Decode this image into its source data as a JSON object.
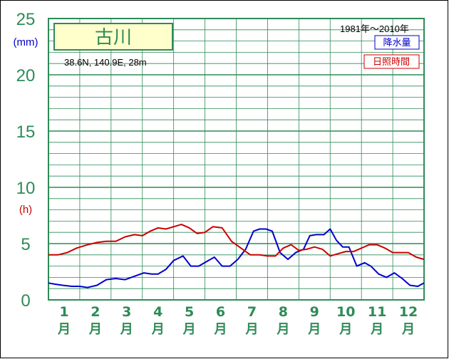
{
  "chart_data": {
    "type": "line",
    "title": "古川",
    "subtitle": "38.6N, 140.9E, 28m",
    "period": "1981年～2010年",
    "ylabel_left": "(mm)",
    "ylabel_right": "(h)",
    "ylim": [
      0,
      25
    ],
    "yticks": [
      0,
      5,
      10,
      15,
      20,
      25
    ],
    "grid": true,
    "legend_position": "top-right",
    "months": [
      "1",
      "2",
      "3",
      "4",
      "5",
      "6",
      "7",
      "8",
      "9",
      "10",
      "11",
      "12"
    ],
    "month_suffix": "月",
    "series": [
      {
        "name": "降水量",
        "color": "#0000cc",
        "x": [
          0.0,
          0.2,
          0.45,
          0.75,
          1.0,
          1.25,
          1.55,
          1.85,
          2.15,
          2.45,
          2.75,
          3.05,
          3.3,
          3.5,
          3.75,
          4.0,
          4.3,
          4.55,
          4.8,
          5.05,
          5.3,
          5.55,
          5.8,
          6.05,
          6.3,
          6.55,
          6.75,
          6.95,
          7.15,
          7.4,
          7.65,
          7.9,
          8.15,
          8.35,
          8.55,
          8.8,
          9.0,
          9.2,
          9.4,
          9.6,
          9.85,
          10.1,
          10.3,
          10.55,
          10.8,
          11.05,
          11.3,
          11.55,
          11.8,
          12.0
        ],
        "y": [
          1.5,
          1.4,
          1.3,
          1.2,
          1.2,
          1.1,
          1.3,
          1.8,
          1.9,
          1.8,
          2.1,
          2.4,
          2.3,
          2.3,
          2.7,
          3.5,
          3.9,
          3.0,
          3.0,
          3.4,
          3.8,
          3.0,
          3.0,
          3.6,
          4.5,
          6.1,
          6.3,
          6.3,
          6.1,
          4.2,
          3.6,
          4.2,
          4.5,
          5.7,
          5.8,
          5.8,
          6.3,
          5.3,
          4.7,
          4.7,
          3.0,
          3.3,
          3.0,
          2.3,
          2.0,
          2.4,
          1.9,
          1.3,
          1.2,
          1.5
        ]
      },
      {
        "name": "日照時間",
        "color": "#cc0000",
        "x": [
          0.0,
          0.3,
          0.6,
          0.9,
          1.25,
          1.55,
          1.85,
          2.15,
          2.45,
          2.75,
          3.0,
          3.25,
          3.5,
          3.75,
          4.0,
          4.25,
          4.5,
          4.75,
          5.0,
          5.25,
          5.55,
          5.85,
          6.15,
          6.45,
          6.75,
          7.0,
          7.25,
          7.5,
          7.75,
          8.0,
          8.25,
          8.5,
          8.75,
          9.0,
          9.25,
          9.5,
          9.75,
          10.0,
          10.25,
          10.5,
          10.75,
          11.0,
          11.25,
          11.5,
          11.75,
          12.0
        ],
        "y": [
          4.0,
          4.0,
          4.2,
          4.6,
          4.9,
          5.1,
          5.2,
          5.2,
          5.6,
          5.8,
          5.7,
          6.1,
          6.4,
          6.3,
          6.5,
          6.7,
          6.4,
          5.9,
          6.0,
          6.5,
          6.4,
          5.2,
          4.6,
          4.0,
          4.0,
          3.9,
          3.9,
          4.6,
          4.9,
          4.4,
          4.5,
          4.7,
          4.5,
          3.9,
          4.1,
          4.3,
          4.3,
          4.6,
          4.9,
          4.9,
          4.6,
          4.2,
          4.2,
          4.2,
          3.8,
          3.6
        ]
      }
    ]
  }
}
